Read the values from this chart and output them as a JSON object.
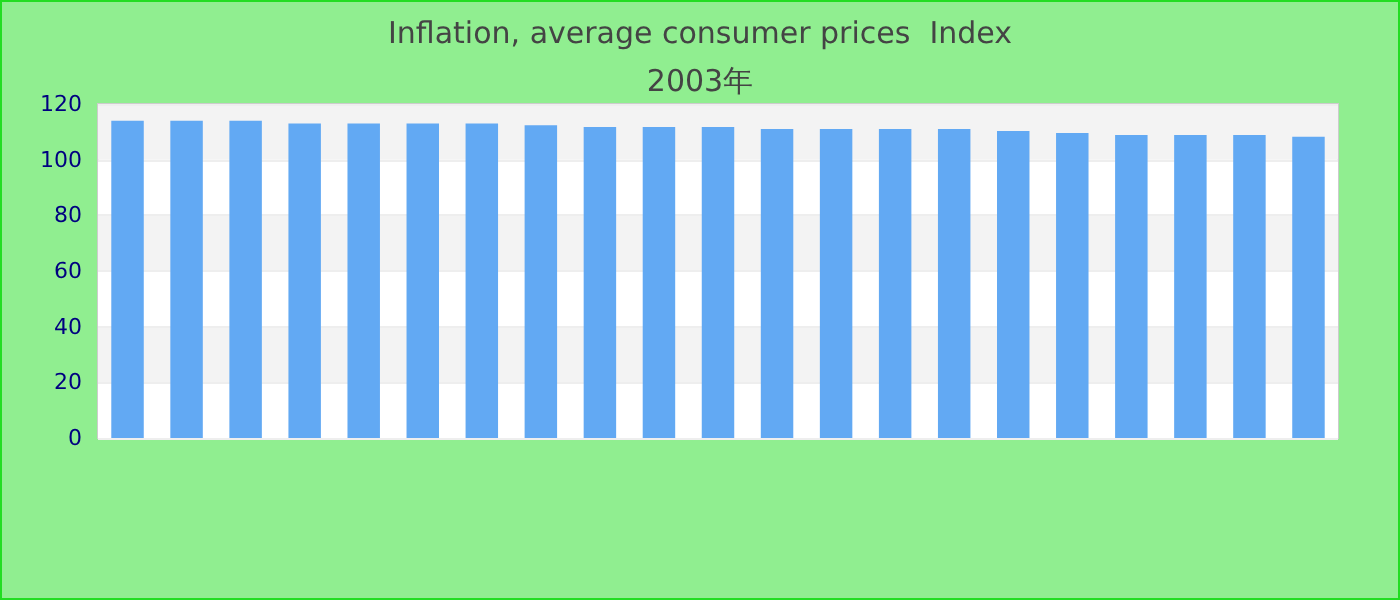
{
  "chart_data": {
    "type": "bar",
    "title": "Inflation, average consumer prices  Index",
    "subtitle": "2003年",
    "categories": [
      null,
      null,
      null,
      null,
      null,
      null,
      null,
      null,
      null,
      null,
      null,
      null,
      null,
      null,
      null,
      null,
      null,
      null,
      null,
      null,
      null
    ],
    "values": [
      114,
      114,
      114,
      113,
      113,
      113,
      113,
      112.4,
      111.7,
      111.7,
      111.7,
      111,
      111,
      111,
      111,
      110.3,
      109.6,
      108.9,
      108.9,
      108.9,
      108.2
    ],
    "color": "#62a9f3",
    "ylim": [
      0,
      120
    ],
    "yticks": [
      0,
      20,
      40,
      60,
      80,
      100,
      120
    ],
    "grid": "y"
  }
}
